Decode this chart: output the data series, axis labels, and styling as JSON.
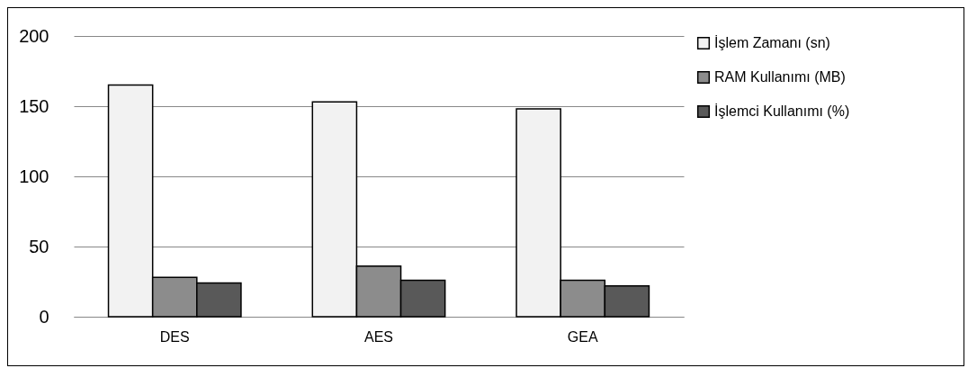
{
  "chart_data": {
    "type": "bar",
    "categories": [
      "DES",
      "AES",
      "GEA"
    ],
    "series": [
      {
        "name": "İşlem Zamanı (sn)",
        "color": "#f2f2f2",
        "values": [
          165,
          153,
          148
        ]
      },
      {
        "name": "RAM Kullanımı (MB)",
        "color": "#8c8c8c",
        "values": [
          28,
          36,
          26
        ]
      },
      {
        "name": "İşlemci Kullanımı (%)",
        "color": "#595959",
        "values": [
          24,
          26,
          22
        ]
      }
    ],
    "ylim": [
      0,
      200
    ],
    "yticks": [
      0,
      50,
      100,
      150,
      200
    ],
    "grid": "y",
    "legend": "right"
  }
}
